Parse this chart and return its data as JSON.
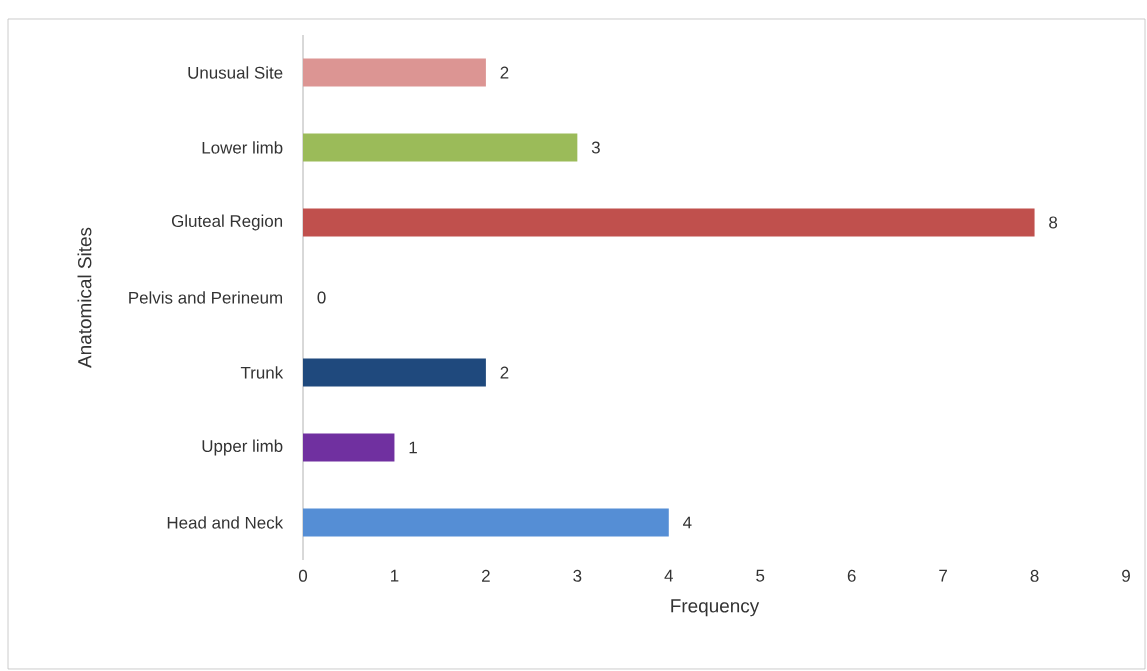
{
  "chart_data": {
    "type": "bar",
    "orientation": "horizontal",
    "xlabel": "Frequency",
    "ylabel": "Anatomical  Sites",
    "categories": [
      "Unusual Site",
      "Lower limb",
      "Gluteal Region",
      "Pelvis and Perineum",
      "Trunk",
      "Upper limb",
      "Head and Neck"
    ],
    "values": [
      2,
      3,
      8,
      0,
      2,
      1,
      4
    ],
    "colors": [
      "#dc9593",
      "#9bbb59",
      "#c0504d",
      "#808080",
      "#1f497d",
      "#7030a0",
      "#558ed5"
    ],
    "xlim": [
      0,
      9
    ],
    "xticks": [
      0,
      1,
      2,
      3,
      4,
      5,
      6,
      7,
      8,
      9
    ],
    "data_labels": true,
    "grid": false
  }
}
